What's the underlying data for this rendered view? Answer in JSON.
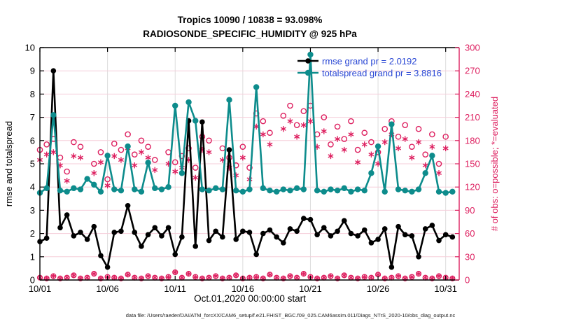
{
  "chart_data": {
    "type": "line",
    "title_line1": "Tropics 10090 / 10838 = 93.098%",
    "title_line2": "RADIOSONDE_SPECIFIC_HUMIDITY @ 925 hPa",
    "footer": "data file: /Users/raeder/DAI/ATM_forcXX/CAM6_setup/f.e21.FHIST_BGC.f09_025.CAM6assim.011/Diags_NTrS_2020-10/obs_diag_output.nc",
    "colors": {
      "rmse": "#000000",
      "totalspread": "#0d8c8c",
      "obs_counts": "#dd1f5f",
      "legend_text": "#2846d4",
      "grid_h": "#f5cdd9",
      "grid_v": "#dcdcdc"
    },
    "left_axis": {
      "label": "rmse and totalspread",
      "min": 0,
      "max": 10,
      "ticks": [
        0,
        1,
        2,
        3,
        4,
        5,
        6,
        7,
        8,
        9,
        10
      ]
    },
    "right_axis": {
      "label": "# of obs: o=possible; *=evaluated",
      "min": 0,
      "max": 300,
      "ticks": [
        0,
        30,
        60,
        90,
        120,
        150,
        180,
        210,
        240,
        270,
        300
      ]
    },
    "x_axis": {
      "label": "Oct.01,2020 00:00:00 start",
      "span_days": 31,
      "tick_days": [
        0,
        5,
        10,
        15,
        20,
        25,
        30
      ],
      "tick_labels": [
        "10/01",
        "10/06",
        "10/11",
        "10/16",
        "10/21",
        "10/26",
        "10/31"
      ],
      "bin_hours": 12
    },
    "legend": {
      "rmse_label": "rmse grand pr = 2.0192",
      "totalspread_label": "totalspread grand pr = 3.8816"
    },
    "t_start": 0,
    "t_step": 0.5,
    "series": [
      {
        "name": "rmse",
        "legend": "rmse grand pr = 2.0192",
        "color": "#000000",
        "values": [
          1.65,
          1.8,
          9.0,
          2.25,
          2.8,
          1.9,
          2.05,
          1.75,
          2.3,
          1.05,
          0.55,
          2.05,
          2.1,
          3.2,
          2.05,
          1.45,
          1.95,
          2.25,
          1.9,
          2.25,
          1.1,
          1.85,
          6.85,
          1.45,
          6.8,
          1.7,
          2.1,
          1.85,
          5.6,
          1.75,
          2.1,
          2.05,
          1.1,
          2.0,
          2.15,
          1.85,
          1.6,
          2.2,
          2.1,
          2.65,
          2.6,
          1.95,
          2.25,
          1.9,
          2.1,
          2.55,
          2.0,
          1.9,
          2.15,
          1.6,
          1.75,
          2.2,
          0.55,
          2.3,
          1.95,
          1.9,
          1.0,
          2.2,
          2.35,
          1.7,
          1.95,
          1.85
        ]
      },
      {
        "name": "totalspread",
        "legend": "totalspread grand pr = 3.8816",
        "color": "#0d8c8c",
        "values": [
          3.75,
          3.95,
          7.1,
          3.85,
          3.8,
          3.95,
          3.9,
          4.35,
          4.1,
          3.8,
          5.35,
          3.9,
          3.85,
          5.75,
          3.9,
          3.8,
          5.05,
          3.95,
          3.9,
          4.0,
          7.5,
          4.6,
          7.65,
          6.85,
          3.9,
          3.85,
          3.95,
          3.9,
          7.75,
          3.85,
          3.8,
          3.9,
          8.3,
          3.95,
          3.85,
          3.8,
          3.9,
          3.85,
          3.95,
          3.9,
          9.7,
          3.85,
          3.8,
          3.9,
          3.85,
          3.95,
          3.8,
          3.9,
          3.85,
          4.6,
          5.75,
          3.8,
          6.7,
          3.9,
          3.85,
          3.8,
          3.9,
          4.6,
          5.35,
          3.8,
          3.75,
          3.8
        ]
      }
    ],
    "obs_counts": {
      "units": "right_axis",
      "possible_circles": [
        168,
        175,
        182,
        158,
        140,
        178,
        172,
        null,
        150,
        165,
        130,
        176,
        168,
        188,
        162,
        180,
        172,
        155,
        null,
        165,
        152,
        160,
        170,
        145,
        185,
        180,
        null,
        170,
        158,
        148,
        172,
        145,
        215,
        205,
        190,
        null,
        212,
        225,
        200,
        218,
        225,
        188,
        210,
        175,
        198,
        182,
        205,
        168,
        190,
        178,
        165,
        195,
        205,
        185,
        200,
        172,
        195,
        162,
        188,
        150,
        185,
        null
      ],
      "evaluated_asterisks": [
        155,
        162,
        165,
        148,
        128,
        160,
        158,
        null,
        138,
        152,
        122,
        160,
        155,
        170,
        148,
        165,
        158,
        142,
        null,
        150,
        140,
        145,
        155,
        132,
        168,
        165,
        null,
        155,
        145,
        135,
        158,
        130,
        198,
        188,
        175,
        null,
        195,
        205,
        185,
        200,
        205,
        172,
        192,
        160,
        182,
        168,
        188,
        152,
        175,
        162,
        150,
        178,
        188,
        170,
        182,
        158,
        178,
        148,
        172,
        138,
        170,
        null
      ],
      "near_zero_markers": [
        3,
        2,
        5,
        2,
        3,
        6,
        2,
        3,
        8,
        2,
        4,
        3,
        2,
        7,
        3,
        2,
        5,
        3,
        2,
        4,
        10,
        3,
        8,
        4,
        2,
        3,
        5,
        2,
        3,
        6,
        2,
        3,
        4,
        2,
        7,
        3,
        2,
        5,
        3,
        8,
        4,
        2,
        3,
        5,
        2,
        6,
        3,
        2,
        4,
        3,
        7,
        2,
        3,
        5,
        2,
        4,
        8,
        3,
        2,
        5,
        3,
        2
      ]
    }
  }
}
